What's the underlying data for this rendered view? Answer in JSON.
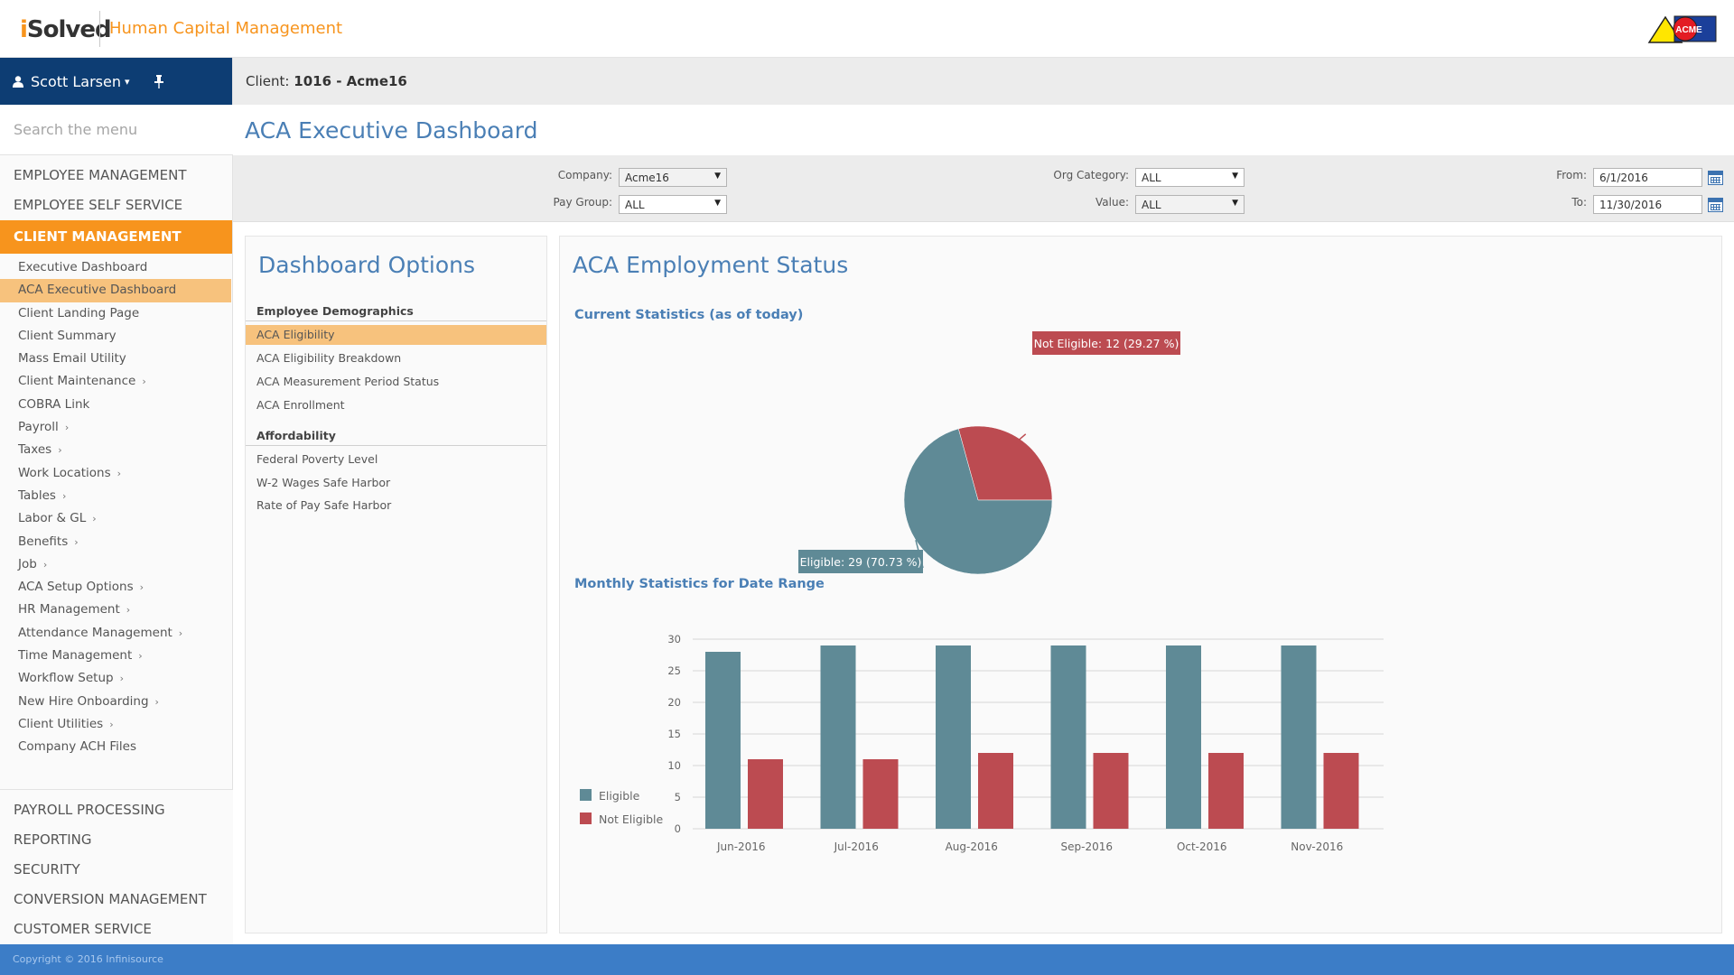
{
  "header": {
    "logo_i": "i",
    "logo_rest": "Solved",
    "product": "Human Capital Management",
    "client_logo_text": "ACME"
  },
  "user": {
    "name": "Scott Larsen",
    "caret": "▾",
    "pin": "📌"
  },
  "search": {
    "placeholder": "Search the menu"
  },
  "sidebar": {
    "top_sections": [
      "EMPLOYEE MANAGEMENT",
      "EMPLOYEE SELF SERVICE"
    ],
    "active_section": "CLIENT MANAGEMENT",
    "items": [
      {
        "label": "Executive Dashboard",
        "chevron": ""
      },
      {
        "label": "ACA Executive Dashboard",
        "chevron": ""
      },
      {
        "label": "Client Landing Page",
        "chevron": ""
      },
      {
        "label": "Client Summary",
        "chevron": ""
      },
      {
        "label": "Mass Email Utility",
        "chevron": ""
      },
      {
        "label": "Client Maintenance",
        "chevron": "›"
      },
      {
        "label": "COBRA Link",
        "chevron": ""
      },
      {
        "label": "Payroll",
        "chevron": "›"
      },
      {
        "label": "Taxes",
        "chevron": "›"
      },
      {
        "label": "Work Locations",
        "chevron": "›"
      },
      {
        "label": "Tables",
        "chevron": "›"
      },
      {
        "label": "Labor & GL",
        "chevron": "›"
      },
      {
        "label": "Benefits",
        "chevron": "›"
      },
      {
        "label": "Job",
        "chevron": "›"
      },
      {
        "label": "ACA Setup Options",
        "chevron": "›"
      },
      {
        "label": "HR Management",
        "chevron": "›"
      },
      {
        "label": "Attendance Management",
        "chevron": "›"
      },
      {
        "label": "Time Management",
        "chevron": "›"
      },
      {
        "label": "Workflow Setup",
        "chevron": "›"
      },
      {
        "label": "New Hire Onboarding",
        "chevron": "›"
      },
      {
        "label": "Client Utilities",
        "chevron": "›"
      },
      {
        "label": "Company ACH Files",
        "chevron": ""
      }
    ],
    "bottom_sections": [
      "PAYROLL PROCESSING",
      "REPORTING",
      "SECURITY",
      "CONVERSION MANAGEMENT",
      "CUSTOMER SERVICE"
    ]
  },
  "client": {
    "prefix": "Client:",
    "value": "1016 - Acme16"
  },
  "page_title": "ACA Executive Dashboard",
  "filters": {
    "company_label": "Company:",
    "company_value": "Acme16",
    "paygroup_label": "Pay Group:",
    "paygroup_value": "ALL",
    "orgcat_label": "Org Category:",
    "orgcat_value": "ALL",
    "value_label": "Value:",
    "value_value": "ALL",
    "from_label": "From:",
    "from_value": "6/1/2016",
    "to_label": "To:",
    "to_value": "11/30/2016",
    "arrow": "▼"
  },
  "options": {
    "title": "Dashboard Options",
    "group1": "Employee Demographics",
    "group1_items": [
      "ACA Eligibility",
      "ACA Eligibility Breakdown",
      "ACA Measurement Period Status",
      "ACA Enrollment"
    ],
    "group2": "Affordability",
    "group2_items": [
      "Federal Poverty Level",
      "W-2 Wages Safe Harbor",
      "Rate of Pay Safe Harbor"
    ]
  },
  "status": {
    "title": "ACA Employment Status",
    "current_title": "Current Statistics (as of today)",
    "monthly_title": "Monthly Statistics for Date Range"
  },
  "colors": {
    "eligible": "#5f8a96",
    "not_eligible": "#bc4b51",
    "accent": "#f7941d",
    "nav": "#0d3d73"
  },
  "chart_data": [
    {
      "type": "pie",
      "slices": [
        {
          "label": "Eligible",
          "value": 29,
          "percent": 70.73,
          "color": "#5f8a96",
          "tooltip": "Eligible: 29 (70.73 %)"
        },
        {
          "label": "Not Eligible",
          "value": 12,
          "percent": 29.27,
          "color": "#bc4b51",
          "tooltip": "Not Eligible: 12 (29.27 %)"
        }
      ]
    },
    {
      "type": "bar",
      "categories": [
        "Jun-2016",
        "Jul-2016",
        "Aug-2016",
        "Sep-2016",
        "Oct-2016",
        "Nov-2016"
      ],
      "series": [
        {
          "name": "Eligible",
          "color": "#5f8a96",
          "values": [
            28,
            29,
            29,
            29,
            29,
            29
          ]
        },
        {
          "name": "Not Eligible",
          "color": "#bc4b51",
          "values": [
            11,
            11,
            12,
            12,
            12,
            12
          ]
        }
      ],
      "ylim": [
        0,
        30
      ],
      "yticks": [
        "0",
        "5",
        "10",
        "15",
        "20",
        "25",
        "30"
      ],
      "grid": true,
      "legend": "left"
    }
  ],
  "footer": {
    "copyright": "Copyright © 2016 Infinisource"
  }
}
